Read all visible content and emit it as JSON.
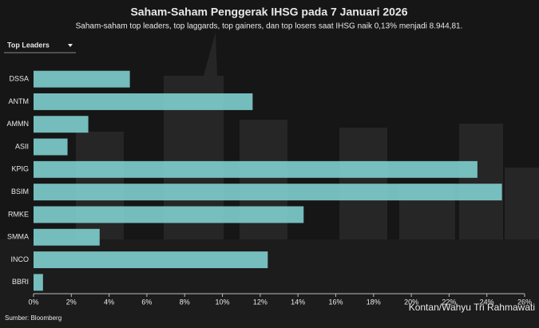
{
  "chart_data": {
    "type": "bar",
    "orientation": "horizontal",
    "title": "Saham-Saham Penggerak IHSG pada 7 Januari 2026",
    "subtitle": "Saham-saham top leaders, top laggards, top gainers, dan top losers saat IHSG naik 0,13% menjadi 8.944,81.",
    "dropdown": "Top Leaders",
    "categories": [
      "DSSA",
      "ANTM",
      "AMMN",
      "ASII",
      "KPIG",
      "BSIM",
      "RMKE",
      "SMMA",
      "INCO",
      "BBRI"
    ],
    "values": [
      5.1,
      11.6,
      2.9,
      1.8,
      23.5,
      24.8,
      14.3,
      3.5,
      12.4,
      0.5
    ],
    "color": "#7ecbcb",
    "xlim": [
      0,
      26
    ],
    "xticks": [
      {
        "value": 0,
        "label": "0%"
      },
      {
        "value": 2,
        "label": "2%"
      },
      {
        "value": 4,
        "label": "4%"
      },
      {
        "value": 6,
        "label": "6%"
      },
      {
        "value": 8,
        "label": "8%"
      },
      {
        "value": 10,
        "label": "10%"
      },
      {
        "value": 12,
        "label": "12%"
      },
      {
        "value": 14,
        "label": "14%"
      },
      {
        "value": 16,
        "label": "16%"
      },
      {
        "value": 18,
        "label": "18%"
      },
      {
        "value": 20,
        "label": "20%"
      },
      {
        "value": 22,
        "label": "22%"
      },
      {
        "value": 24,
        "label": "24%"
      },
      {
        "value": 26,
        "label": "26%"
      }
    ],
    "source": "Sumber: Bloomberg",
    "credit": "Kontan/Wahyu Tri Rahmawati"
  }
}
